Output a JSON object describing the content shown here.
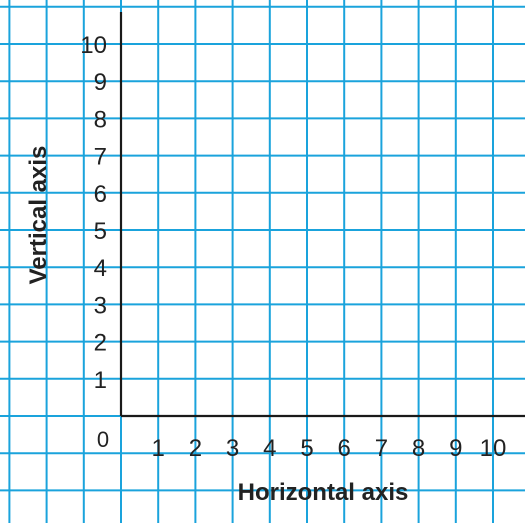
{
  "colors": {
    "grid_line": "#1aa3dc",
    "axis_line": "#1a1a1a",
    "text": "#222222",
    "background": "#ffffff"
  },
  "origin_label": "0",
  "x_ticks": [
    "1",
    "2",
    "3",
    "4",
    "5",
    "6",
    "7",
    "8",
    "9",
    "10"
  ],
  "y_ticks": [
    "1",
    "2",
    "3",
    "4",
    "5",
    "6",
    "7",
    "8",
    "9",
    "10"
  ],
  "xlabel": "Horizontal axis",
  "ylabel": "Vertical axis"
}
